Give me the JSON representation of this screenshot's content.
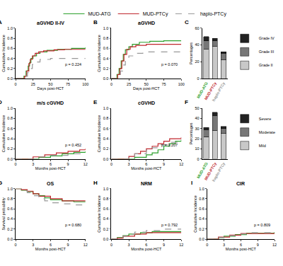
{
  "chart_data": [
    {
      "type": "line",
      "panel": "A",
      "title": "aGVHD II-IV",
      "xlabel": "Days post-HCT",
      "ylabel": "Cumulative Incidence",
      "xlim": [
        0,
        100
      ],
      "xticks": [
        0,
        25,
        50,
        75,
        100
      ],
      "ylim": [
        0,
        1
      ],
      "yticks": [
        {
          "value": 0,
          "label": "0.0"
        },
        0.2,
        0.4,
        0.6,
        0.8,
        {
          "value": 1,
          "label": "1.0"
        }
      ],
      "annotations": [
        "p = 0.224"
      ],
      "legend": "top",
      "series": [
        {
          "name": "MUD-ATG",
          "color": "#2ca02c",
          "line_style": "solid",
          "x": [
            0,
            12,
            15,
            18,
            20,
            22,
            25,
            30,
            35,
            45,
            60,
            80,
            100
          ],
          "values": [
            0,
            0.05,
            0.15,
            0.25,
            0.32,
            0.4,
            0.45,
            0.5,
            0.53,
            0.56,
            0.58,
            0.6,
            0.62
          ]
        },
        {
          "name": "MUD-PTCy",
          "color": "#c0272d",
          "line_style": "solid",
          "x": [
            0,
            13,
            16,
            19,
            21,
            24,
            28,
            33,
            40,
            55,
            70,
            100
          ],
          "values": [
            0,
            0.05,
            0.15,
            0.3,
            0.38,
            0.45,
            0.5,
            0.53,
            0.55,
            0.57,
            0.58,
            0.58
          ]
        },
        {
          "name": "haplo-PTCy",
          "color": "#999999",
          "line_style": "dashed",
          "x": [
            0,
            14,
            17,
            20,
            24,
            28,
            35,
            50,
            100
          ],
          "values": [
            0,
            0.05,
            0.12,
            0.2,
            0.28,
            0.33,
            0.38,
            0.4,
            0.4
          ]
        }
      ]
    },
    {
      "type": "line",
      "panel": "B",
      "title": "aGVHD",
      "xlabel": "Days post-HCT",
      "ylabel": "Cumulative Incidence",
      "xlim": [
        0,
        100
      ],
      "xticks": [
        0,
        25,
        50,
        75,
        100
      ],
      "ylim": [
        0,
        1
      ],
      "yticks": [
        {
          "value": 0,
          "label": "0.0"
        },
        0.2,
        0.4,
        0.6,
        0.8,
        {
          "value": 1,
          "label": "1.0"
        }
      ],
      "annotations": [
        "p = 0.070"
      ],
      "series": [
        {
          "name": "MUD-ATG",
          "color": "#2ca02c",
          "line_style": "solid",
          "x": [
            0,
            8,
            11,
            14,
            17,
            20,
            25,
            30,
            40,
            55,
            75,
            100
          ],
          "values": [
            0,
            0.08,
            0.2,
            0.35,
            0.48,
            0.57,
            0.63,
            0.68,
            0.72,
            0.74,
            0.75,
            0.75
          ]
        },
        {
          "name": "MUD-PTCy",
          "color": "#c0272d",
          "line_style": "solid",
          "x": [
            0,
            9,
            12,
            15,
            18,
            22,
            27,
            35,
            50,
            100
          ],
          "values": [
            0,
            0.08,
            0.2,
            0.35,
            0.48,
            0.58,
            0.63,
            0.66,
            0.68,
            0.68
          ]
        },
        {
          "name": "haplo-PTCy",
          "color": "#999999",
          "line_style": "dashed",
          "x": [
            0,
            10,
            13,
            16,
            20,
            25,
            32,
            45,
            100
          ],
          "values": [
            0,
            0.06,
            0.15,
            0.27,
            0.38,
            0.45,
            0.5,
            0.53,
            0.53
          ]
        }
      ]
    },
    {
      "type": "bar",
      "panel": "C",
      "ylabel": "Percentages",
      "stacked": true,
      "legend": "right",
      "categories": [
        "MUD-ATG",
        "MUD-PTCy",
        "haplo-PTCy"
      ],
      "ylim": [
        0,
        60
      ],
      "yticks": [
        0,
        20,
        40,
        60
      ],
      "series": [
        {
          "name": "Grade II",
          "color": "#c8c8c8",
          "values": [
            35,
            38,
            22
          ]
        },
        {
          "name": "Grade III",
          "color": "#777777",
          "values": [
            10,
            7,
            8
          ]
        },
        {
          "name": "Grade IV",
          "color": "#222222",
          "values": [
            5,
            3,
            2
          ]
        }
      ]
    },
    {
      "type": "line",
      "panel": "D",
      "title": "m/s cGVHD",
      "xlabel": "Months post-HCT",
      "ylabel": "Cumulative Incidence",
      "xlim": [
        0,
        12
      ],
      "xticks": [
        0,
        3,
        6,
        9,
        12
      ],
      "ylim": [
        0,
        1
      ],
      "yticks": [
        {
          "value": 0,
          "label": "0.0"
        },
        0.2,
        0.4,
        0.6,
        0.8,
        {
          "value": 1,
          "label": "1.0"
        }
      ],
      "annotations": [
        "p = 0.452"
      ],
      "series": [
        {
          "name": "MUD-ATG",
          "color": "#2ca02c",
          "line_style": "solid",
          "x": [
            0,
            4,
            6,
            8,
            10,
            12
          ],
          "values": [
            0,
            0.03,
            0.06,
            0.1,
            0.13,
            0.15
          ]
        },
        {
          "name": "MUD-PTCy",
          "color": "#c0272d",
          "line_style": "solid",
          "x": [
            0,
            3,
            5,
            7,
            9,
            11,
            12
          ],
          "values": [
            0,
            0.04,
            0.08,
            0.12,
            0.15,
            0.18,
            0.2
          ]
        },
        {
          "name": "haplo-PTCy",
          "color": "#999999",
          "line_style": "dashed",
          "x": [
            0,
            4,
            6,
            9,
            12
          ],
          "values": [
            0,
            0.04,
            0.07,
            0.1,
            0.12
          ]
        }
      ]
    },
    {
      "type": "line",
      "panel": "E",
      "title": "cGVHD",
      "xlabel": "Months post-HCT",
      "ylabel": "Cumulative Incidence",
      "xlim": [
        0,
        12
      ],
      "xticks": [
        0,
        3,
        6,
        9,
        12
      ],
      "ylim": [
        0,
        1
      ],
      "yticks": [
        {
          "value": 0,
          "label": "0.0"
        },
        0.2,
        0.4,
        0.6,
        0.8,
        {
          "value": 1,
          "label": "1.0"
        }
      ],
      "annotations": [
        "p = 0.207"
      ],
      "series": [
        {
          "name": "MUD-ATG",
          "color": "#2ca02c",
          "line_style": "solid",
          "x": [
            0,
            4,
            6,
            7,
            8,
            9,
            10,
            11,
            12
          ],
          "values": [
            0,
            0.03,
            0.08,
            0.12,
            0.18,
            0.25,
            0.3,
            0.35,
            0.38
          ]
        },
        {
          "name": "MUD-PTCy",
          "color": "#c0272d",
          "line_style": "solid",
          "x": [
            0,
            3,
            4,
            5,
            6,
            7,
            8,
            9,
            10,
            12
          ],
          "values": [
            0,
            0.05,
            0.1,
            0.15,
            0.2,
            0.25,
            0.3,
            0.35,
            0.4,
            0.43
          ]
        },
        {
          "name": "haplo-PTCy",
          "color": "#999999",
          "line_style": "dashed",
          "x": [
            0,
            3,
            4,
            6,
            7,
            8,
            10,
            12
          ],
          "values": [
            0,
            0.05,
            0.1,
            0.18,
            0.22,
            0.28,
            0.33,
            0.38
          ]
        }
      ]
    },
    {
      "type": "bar",
      "panel": "F",
      "ylabel": "Percentages",
      "stacked": true,
      "legend": "right",
      "categories": [
        "MUD-ATG",
        "MUD-PTCy",
        "haplo-PTCy"
      ],
      "ylim": [
        0,
        50
      ],
      "yticks": [
        0,
        10,
        20,
        30,
        40,
        50
      ],
      "series": [
        {
          "name": "Mild",
          "color": "#c8c8c8",
          "values": [
            22,
            28,
            25
          ]
        },
        {
          "name": "Moderate",
          "color": "#777777",
          "values": [
            7,
            15,
            5
          ]
        },
        {
          "name": "Severe",
          "color": "#222222",
          "values": [
            2,
            3,
            2
          ]
        }
      ]
    },
    {
      "type": "line",
      "panel": "G",
      "title": "OS",
      "xlabel": "Months post-HCT",
      "ylabel": "Survival probability",
      "xlim": [
        0,
        12
      ],
      "xticks": [
        0,
        3,
        6,
        9,
        12
      ],
      "ylim": [
        0,
        1
      ],
      "yticks": [
        {
          "value": 0,
          "label": "0.0"
        },
        0.2,
        0.4,
        0.6,
        0.8,
        {
          "value": 1,
          "label": "1.0"
        }
      ],
      "annotations": [
        "p = 0.680"
      ],
      "series": [
        {
          "name": "MUD-ATG",
          "color": "#2ca02c",
          "line_style": "solid",
          "x": [
            0,
            1,
            2,
            3,
            4,
            5,
            6,
            8,
            10,
            12
          ],
          "values": [
            1,
            0.97,
            0.94,
            0.9,
            0.86,
            0.82,
            0.78,
            0.76,
            0.74,
            0.74
          ]
        },
        {
          "name": "MUD-PTCy",
          "color": "#c0272d",
          "line_style": "solid",
          "x": [
            0,
            1,
            2,
            3,
            4,
            6,
            8,
            12
          ],
          "values": [
            1,
            0.98,
            0.95,
            0.9,
            0.85,
            0.8,
            0.76,
            0.76
          ]
        },
        {
          "name": "haplo-PTCy",
          "color": "#999999",
          "line_style": "dashed",
          "x": [
            0,
            1,
            2,
            3,
            4,
            5,
            6,
            8,
            10,
            12
          ],
          "values": [
            1,
            0.96,
            0.92,
            0.86,
            0.8,
            0.76,
            0.72,
            0.7,
            0.68,
            0.68
          ]
        }
      ]
    },
    {
      "type": "line",
      "panel": "H",
      "title": "NRM",
      "xlabel": "Months post-HCT",
      "ylabel": "Cumulative Incidence",
      "xlim": [
        0,
        12
      ],
      "xticks": [
        0,
        3,
        6,
        9,
        12
      ],
      "ylim": [
        0,
        1
      ],
      "yticks": [
        {
          "value": 0,
          "label": "0.0"
        },
        0.2,
        0.4,
        0.6,
        0.8,
        {
          "value": 1,
          "label": "1.0"
        }
      ],
      "annotations": [
        "p = 0.792"
      ],
      "series": [
        {
          "name": "MUD-ATG",
          "color": "#2ca02c",
          "line_style": "solid",
          "x": [
            0,
            1,
            2,
            3,
            5,
            7,
            12
          ],
          "values": [
            0,
            0.03,
            0.07,
            0.1,
            0.13,
            0.15,
            0.15
          ]
        },
        {
          "name": "MUD-PTCy",
          "color": "#c0272d",
          "line_style": "solid",
          "x": [
            0,
            1,
            2,
            4,
            6,
            12
          ],
          "values": [
            0,
            0.02,
            0.06,
            0.1,
            0.13,
            0.13
          ]
        },
        {
          "name": "haplo-PTCy",
          "color": "#999999",
          "line_style": "dashed",
          "x": [
            0,
            1,
            2,
            3,
            4,
            6,
            9,
            12
          ],
          "values": [
            0,
            0.03,
            0.06,
            0.1,
            0.14,
            0.17,
            0.2,
            0.2
          ]
        }
      ]
    },
    {
      "type": "line",
      "panel": "I",
      "title": "CIR",
      "xlabel": "Months post-HCT",
      "ylabel": "Cumulative Incidence",
      "xlim": [
        0,
        12
      ],
      "xticks": [
        0,
        3,
        6,
        9,
        12
      ],
      "ylim": [
        0,
        1
      ],
      "yticks": [
        {
          "value": 0,
          "label": "0.0"
        },
        0.2,
        0.4,
        0.6,
        0.8,
        {
          "value": 1,
          "label": "1.0"
        }
      ],
      "annotations": [
        "p = 0.809"
      ],
      "series": [
        {
          "name": "MUD-ATG",
          "color": "#2ca02c",
          "line_style": "solid",
          "x": [
            0,
            2,
            3,
            5,
            7,
            12
          ],
          "values": [
            0,
            0.03,
            0.06,
            0.09,
            0.12,
            0.14
          ]
        },
        {
          "name": "MUD-PTCy",
          "color": "#c0272d",
          "line_style": "solid",
          "x": [
            0,
            2,
            4,
            6,
            12
          ],
          "values": [
            0,
            0.04,
            0.08,
            0.11,
            0.11
          ]
        },
        {
          "name": "haplo-PTCy",
          "color": "#999999",
          "line_style": "dashed",
          "x": [
            0,
            2,
            3,
            5,
            8,
            12
          ],
          "values": [
            0,
            0.03,
            0.07,
            0.1,
            0.13,
            0.15
          ]
        }
      ]
    }
  ]
}
